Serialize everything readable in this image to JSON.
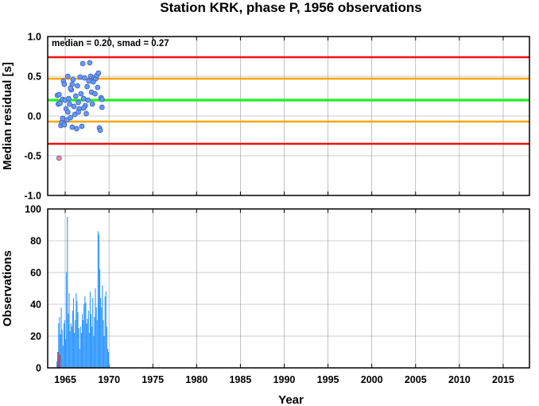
{
  "chart_data": [
    {
      "type": "scatter",
      "title": "Station KRK, phase P, 1956 observations",
      "ylabel": "Median residual [s]",
      "xlabel": "",
      "annotation": "median = 0.20, smad = 0.27",
      "xlim": [
        1963.0,
        2018.0
      ],
      "ylim": [
        -1.0,
        1.0
      ],
      "x_ticks": [
        1965,
        1970,
        1975,
        1980,
        1985,
        1990,
        1995,
        2000,
        2005,
        2010,
        2015
      ],
      "y_ticks": [
        "1.0",
        "0.5",
        "0.0",
        "-0.5",
        "-1.0"
      ],
      "grid": true,
      "reference_lines": [
        {
          "y": 0.2,
          "color": "#22ee22",
          "label": "median"
        },
        {
          "y": 0.47,
          "color": "#ffa500"
        },
        {
          "y": -0.07,
          "color": "#ffa500"
        },
        {
          "y": 0.74,
          "color": "#ee1111"
        },
        {
          "y": -0.35,
          "color": "#ee1111"
        }
      ],
      "series": [
        {
          "color": "#6699ff",
          "points": [
            [
              1964.1,
              0.26
            ],
            [
              1964.2,
              0.15
            ],
            [
              1964.3,
              0.27
            ],
            [
              1964.4,
              0.16
            ],
            [
              1964.5,
              -0.12
            ],
            [
              1964.6,
              -0.08
            ],
            [
              1964.7,
              0.21
            ],
            [
              1964.7,
              -0.03
            ],
            [
              1964.8,
              0.44
            ],
            [
              1964.9,
              0.4
            ],
            [
              1964.9,
              -0.11
            ],
            [
              1965.0,
              0.2
            ],
            [
              1965.1,
              0.09
            ],
            [
              1965.2,
              -0.05
            ],
            [
              1965.3,
              0.05
            ],
            [
              1965.3,
              0.5
            ],
            [
              1965.4,
              0.22
            ],
            [
              1965.5,
              0.15
            ],
            [
              1965.6,
              -0.02
            ],
            [
              1965.7,
              0.33
            ],
            [
              1965.8,
              0.4
            ],
            [
              1965.8,
              -0.14
            ],
            [
              1965.9,
              0.46
            ],
            [
              1966.0,
              0.12
            ],
            [
              1966.1,
              0.02
            ],
            [
              1966.2,
              0.25
            ],
            [
              1966.3,
              -0.16
            ],
            [
              1966.4,
              0.38
            ],
            [
              1966.5,
              0.17
            ],
            [
              1966.6,
              0.09
            ],
            [
              1966.7,
              0.49
            ],
            [
              1966.8,
              0.28
            ],
            [
              1966.9,
              -0.13
            ],
            [
              1967.0,
              0.66
            ],
            [
              1967.1,
              0.22
            ],
            [
              1967.2,
              0.48
            ],
            [
              1967.3,
              0.13
            ],
            [
              1967.4,
              0.03
            ],
            [
              1967.5,
              0.37
            ],
            [
              1967.6,
              0.2
            ],
            [
              1967.7,
              0.44
            ],
            [
              1967.8,
              0.67
            ],
            [
              1967.9,
              0.5
            ],
            [
              1968.0,
              0.3
            ],
            [
              1968.1,
              0.15
            ],
            [
              1968.2,
              0.43
            ],
            [
              1968.3,
              0.48
            ],
            [
              1968.4,
              0.28
            ],
            [
              1968.5,
              0.47
            ],
            [
              1968.6,
              0.51
            ],
            [
              1968.7,
              0.36
            ],
            [
              1968.8,
              0.54
            ],
            [
              1968.9,
              -0.15
            ],
            [
              1969.0,
              -0.18
            ],
            [
              1969.1,
              0.23
            ],
            [
              1969.2,
              0.21
            ],
            [
              1969.2,
              0.11
            ],
            [
              1966.5,
              0.05
            ],
            [
              1967.1,
              0.1
            ],
            [
              1965.6,
              0.35
            ]
          ]
        },
        {
          "color": "#ff8888",
          "points": [
            [
              1964.3,
              -0.53
            ]
          ]
        }
      ]
    },
    {
      "type": "bar",
      "title": "",
      "ylabel": "Observations",
      "xlabel": "Year",
      "xlim": [
        1963.0,
        2018.0
      ],
      "ylim": [
        0,
        100
      ],
      "x_ticks": [
        1965,
        1970,
        1975,
        1980,
        1985,
        1990,
        1995,
        2000,
        2005,
        2010,
        2015
      ],
      "y_ticks": [
        "100",
        "80",
        "60",
        "40",
        "20",
        "0"
      ],
      "grid": true,
      "bar_color": "#3399ff",
      "highlight_color": "#cc3333",
      "highlight_bars": [
        [
          1964.1,
          10
        ],
        [
          1964.3,
          8
        ]
      ],
      "bar_start": 1964.0,
      "bar_step": 0.1,
      "values": [
        4,
        6,
        28,
        32,
        21,
        38,
        24,
        14,
        28,
        30,
        18,
        60,
        95,
        34,
        47,
        23,
        28,
        26,
        36,
        44,
        22,
        30,
        47,
        42,
        35,
        25,
        12,
        26,
        22,
        34,
        30,
        40,
        45,
        41,
        28,
        31,
        36,
        22,
        48,
        34,
        26,
        44,
        20,
        32,
        50,
        38,
        30,
        86,
        84,
        62,
        44,
        38,
        52,
        30,
        20,
        45,
        48,
        26,
        12,
        10
      ]
    }
  ]
}
